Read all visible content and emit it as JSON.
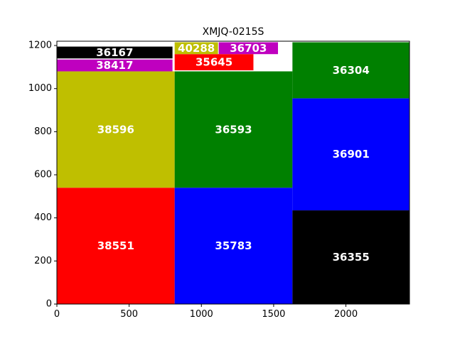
{
  "chart_data": {
    "type": "treemap",
    "title": "XMJQ-0215S",
    "xlim": [
      0,
      2440
    ],
    "ylim": [
      0,
      1220
    ],
    "xticks": [
      0,
      500,
      1000,
      1500,
      2000
    ],
    "yticks": [
      0,
      200,
      400,
      600,
      800,
      1000,
      1200
    ],
    "grid": false,
    "rects": [
      {
        "label": "38551",
        "x": 0,
        "y": 0,
        "w": 815,
        "h": 540,
        "color": "#ff0000"
      },
      {
        "label": "38596",
        "x": 0,
        "y": 540,
        "w": 815,
        "h": 540,
        "color": "#bfbf00"
      },
      {
        "label": "38417",
        "x": 0,
        "y": 1080,
        "w": 800,
        "h": 55,
        "color": "#bf00bf"
      },
      {
        "label": "36167",
        "x": 0,
        "y": 1140,
        "w": 800,
        "h": 55,
        "color": "#000000"
      },
      {
        "label": "35783",
        "x": 815,
        "y": 0,
        "w": 815,
        "h": 540,
        "color": "#0000ff"
      },
      {
        "label": "36593",
        "x": 815,
        "y": 540,
        "w": 815,
        "h": 540,
        "color": "#008000"
      },
      {
        "label": "35645",
        "x": 815,
        "y": 1085,
        "w": 545,
        "h": 75,
        "color": "#ff0000"
      },
      {
        "label": "40288",
        "x": 815,
        "y": 1160,
        "w": 300,
        "h": 55,
        "color": "#bfbf00"
      },
      {
        "label": "36703",
        "x": 1120,
        "y": 1160,
        "w": 410,
        "h": 55,
        "color": "#bf00bf"
      },
      {
        "label": "36355",
        "x": 1630,
        "y": 0,
        "w": 810,
        "h": 435,
        "color": "#000000"
      },
      {
        "label": "36901",
        "x": 1630,
        "y": 435,
        "w": 810,
        "h": 520,
        "color": "#0000ff"
      },
      {
        "label": "36304",
        "x": 1630,
        "y": 955,
        "w": 810,
        "h": 260,
        "color": "#008000"
      }
    ]
  }
}
